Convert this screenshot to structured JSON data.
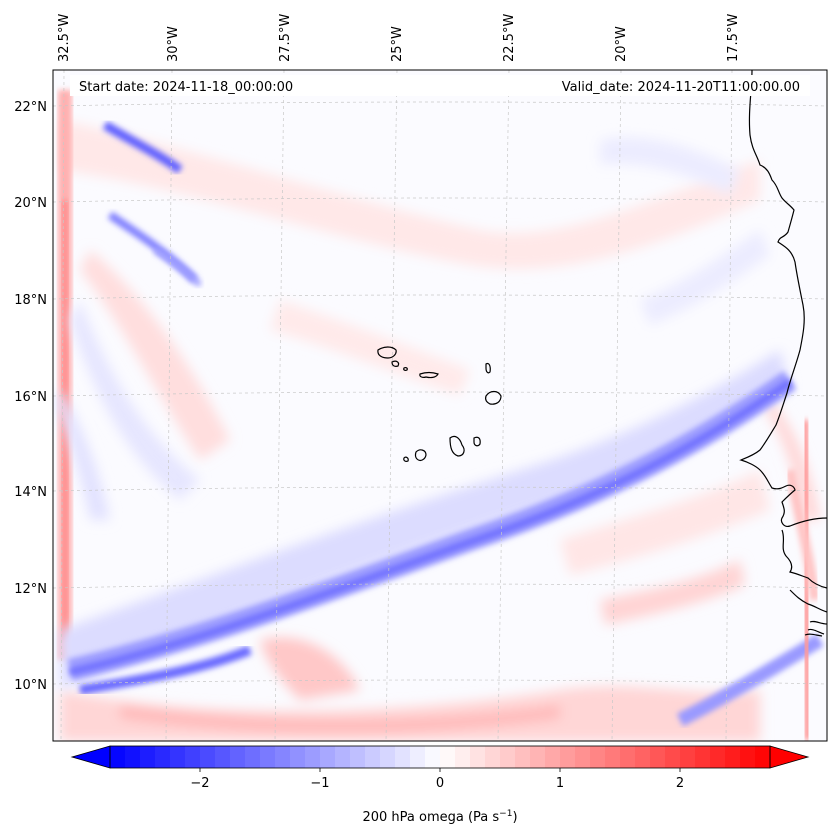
{
  "map": {
    "start_label": "Start date: 2024-11-18_00:00:00",
    "valid_label": "Valid_date: 2024-11-20T11:00:00.00",
    "lon_labels": [
      "32.5°W",
      "30°W",
      "27.5°W",
      "25°W",
      "22.5°W",
      "20°W",
      "17.5°W"
    ],
    "lat_labels": [
      "22°N",
      "20°N",
      "18°N",
      "16°N",
      "14°N",
      "12°N",
      "10°N"
    ],
    "lon_values": [
      -32.5,
      -30,
      -27.5,
      -25,
      -22.5,
      -20,
      -17.5
    ],
    "lat_values": [
      22,
      20,
      18,
      16,
      14,
      12,
      10
    ],
    "field": "200 hPa omega",
    "colors": {
      "negative": "#0000ff",
      "positive": "#ff0000",
      "neutral": "#ffffff",
      "coast": "#000000"
    }
  },
  "colorbar": {
    "label": "200 hPa omega (Pa s",
    "label_exp": "−1",
    "label_close": ")",
    "range": [
      -2.75,
      2.75
    ],
    "ticks": [
      -2,
      -1,
      0,
      1,
      2
    ],
    "tick_labels": [
      "−2",
      "−1",
      "0",
      "1",
      "2"
    ]
  }
}
